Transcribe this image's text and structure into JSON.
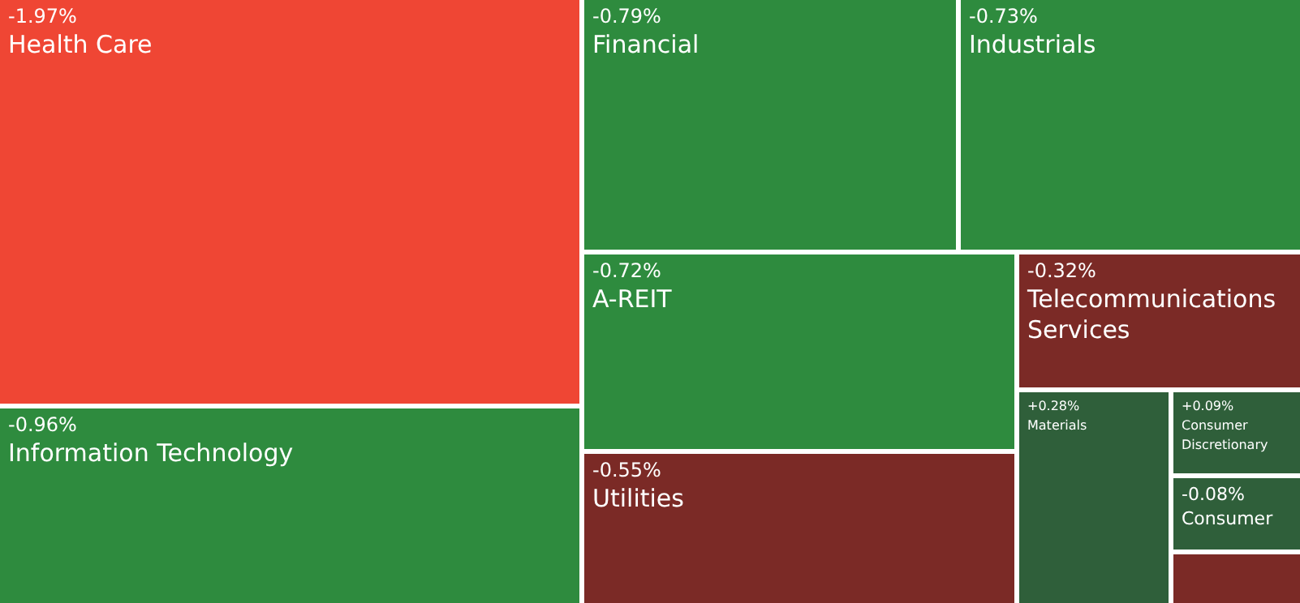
{
  "chart_data": {
    "type": "other",
    "categories": [
      "Health Care",
      "Information Technology",
      "Financial",
      "Industrials",
      "A-REIT",
      "Utilities",
      "Telecommunications Services",
      "Materials",
      "Consumer Discretionary",
      "Consumer"
    ],
    "values": [
      -1.97,
      -0.96,
      -0.79,
      -0.73,
      -0.72,
      -0.55,
      -0.32,
      0.28,
      0.09,
      -0.08
    ],
    "value_labels": [
      "-1.97%",
      "-0.96%",
      "-0.79%",
      "-0.73%",
      "-0.72%",
      "-0.55%",
      "-0.32%",
      "+0.28%",
      "+0.09%",
      "-0.08%"
    ],
    "colors": [
      "#ef4634",
      "#2e8b3e",
      "#2e8b3e",
      "#2e8b3e",
      "#2e8b3e",
      "#7b2a26",
      "#7b2a26",
      "#2f5f3a",
      "#2f5f3a",
      "#2f5f3a"
    ]
  }
}
